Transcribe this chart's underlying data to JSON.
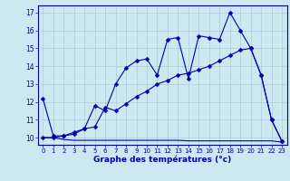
{
  "title": "Graphe des températures (°c)",
  "bg_color": "#cce8f0",
  "grid_color": "#aaccdd",
  "line_color": "#0000aa",
  "xlim": [
    -0.5,
    23.5
  ],
  "ylim": [
    9.6,
    17.4
  ],
  "yticks": [
    10,
    11,
    12,
    13,
    14,
    15,
    16,
    17
  ],
  "xticks": [
    0,
    1,
    2,
    3,
    4,
    5,
    6,
    7,
    8,
    9,
    10,
    11,
    12,
    13,
    14,
    15,
    16,
    17,
    18,
    19,
    20,
    21,
    22,
    23
  ],
  "line1_x": [
    0,
    1,
    2,
    3,
    4,
    5,
    6,
    7,
    8,
    9,
    10,
    11,
    12,
    13,
    14,
    15,
    16,
    17,
    18,
    19,
    20,
    21,
    22,
    23
  ],
  "line1_y": [
    12.2,
    10.1,
    10.1,
    10.3,
    10.5,
    11.8,
    11.5,
    13.0,
    13.9,
    14.3,
    14.4,
    13.5,
    15.5,
    15.6,
    13.3,
    15.7,
    15.6,
    15.5,
    17.0,
    16.0,
    15.0,
    13.5,
    11.0,
    9.8
  ],
  "line2_x": [
    0,
    1,
    2,
    3,
    4,
    5,
    6,
    7,
    8,
    9,
    10,
    11,
    12,
    13,
    14,
    15,
    16,
    17,
    18,
    19,
    20,
    21,
    22,
    23
  ],
  "line2_y": [
    10.0,
    10.0,
    10.1,
    10.2,
    10.5,
    10.6,
    11.7,
    11.5,
    11.9,
    12.3,
    12.6,
    13.0,
    13.2,
    13.5,
    13.6,
    13.8,
    14.0,
    14.3,
    14.6,
    14.9,
    15.0,
    13.5,
    11.0,
    9.8
  ],
  "line3_x": [
    0,
    1,
    2,
    3,
    4,
    5,
    6,
    7,
    8,
    9,
    10,
    11,
    12,
    13,
    14,
    15,
    16,
    17,
    18,
    19,
    20,
    21,
    22,
    23
  ],
  "line3_y": [
    10.0,
    10.0,
    9.9,
    9.85,
    9.85,
    9.85,
    9.85,
    9.85,
    9.85,
    9.85,
    9.85,
    9.85,
    9.85,
    9.85,
    9.82,
    9.82,
    9.82,
    9.82,
    9.82,
    9.82,
    9.82,
    9.82,
    9.82,
    9.75
  ]
}
